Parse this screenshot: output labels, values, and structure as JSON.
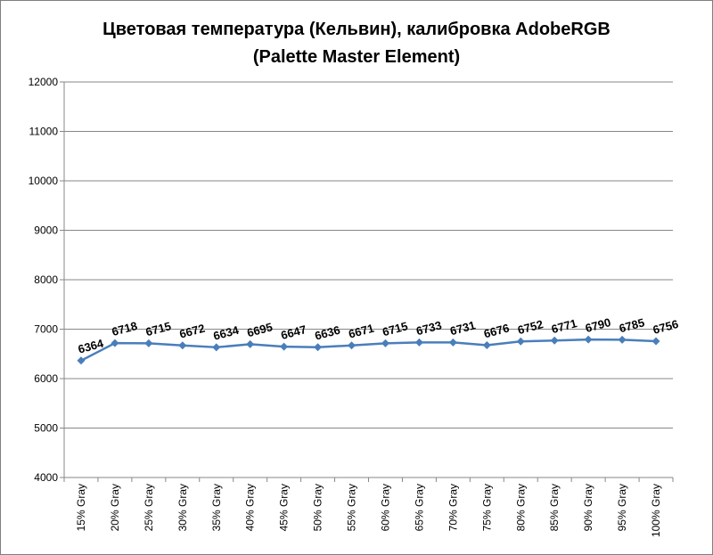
{
  "chart_data": {
    "type": "line",
    "title": "Цветовая температура (Кельвин), калибровка AdobeRGB",
    "subtitle": "(Palette Master Element)",
    "xlabel": "",
    "ylabel": "",
    "categories": [
      "15% Gray",
      "20% Gray",
      "25% Gray",
      "30% Gray",
      "35% Gray",
      "40% Gray",
      "45% Gray",
      "50% Gray",
      "55% Gray",
      "60% Gray",
      "65% Gray",
      "70% Gray",
      "75% Gray",
      "80% Gray",
      "85% Gray",
      "90% Gray",
      "95% Gray",
      "100% Gray"
    ],
    "series": [
      {
        "values": [
          6364,
          6718,
          6715,
          6672,
          6634,
          6695,
          6647,
          6636,
          6671,
          6715,
          6733,
          6731,
          6676,
          6752,
          6771,
          6790,
          6785,
          6756
        ],
        "color": "#4a7ebb",
        "marker": "diamond"
      }
    ],
    "ylim": [
      4000,
      12000
    ],
    "yticks": [
      4000,
      5000,
      6000,
      7000,
      8000,
      9000,
      10000,
      11000,
      12000
    ],
    "grid": "horizontal",
    "legend": "none",
    "data_labels": true
  }
}
